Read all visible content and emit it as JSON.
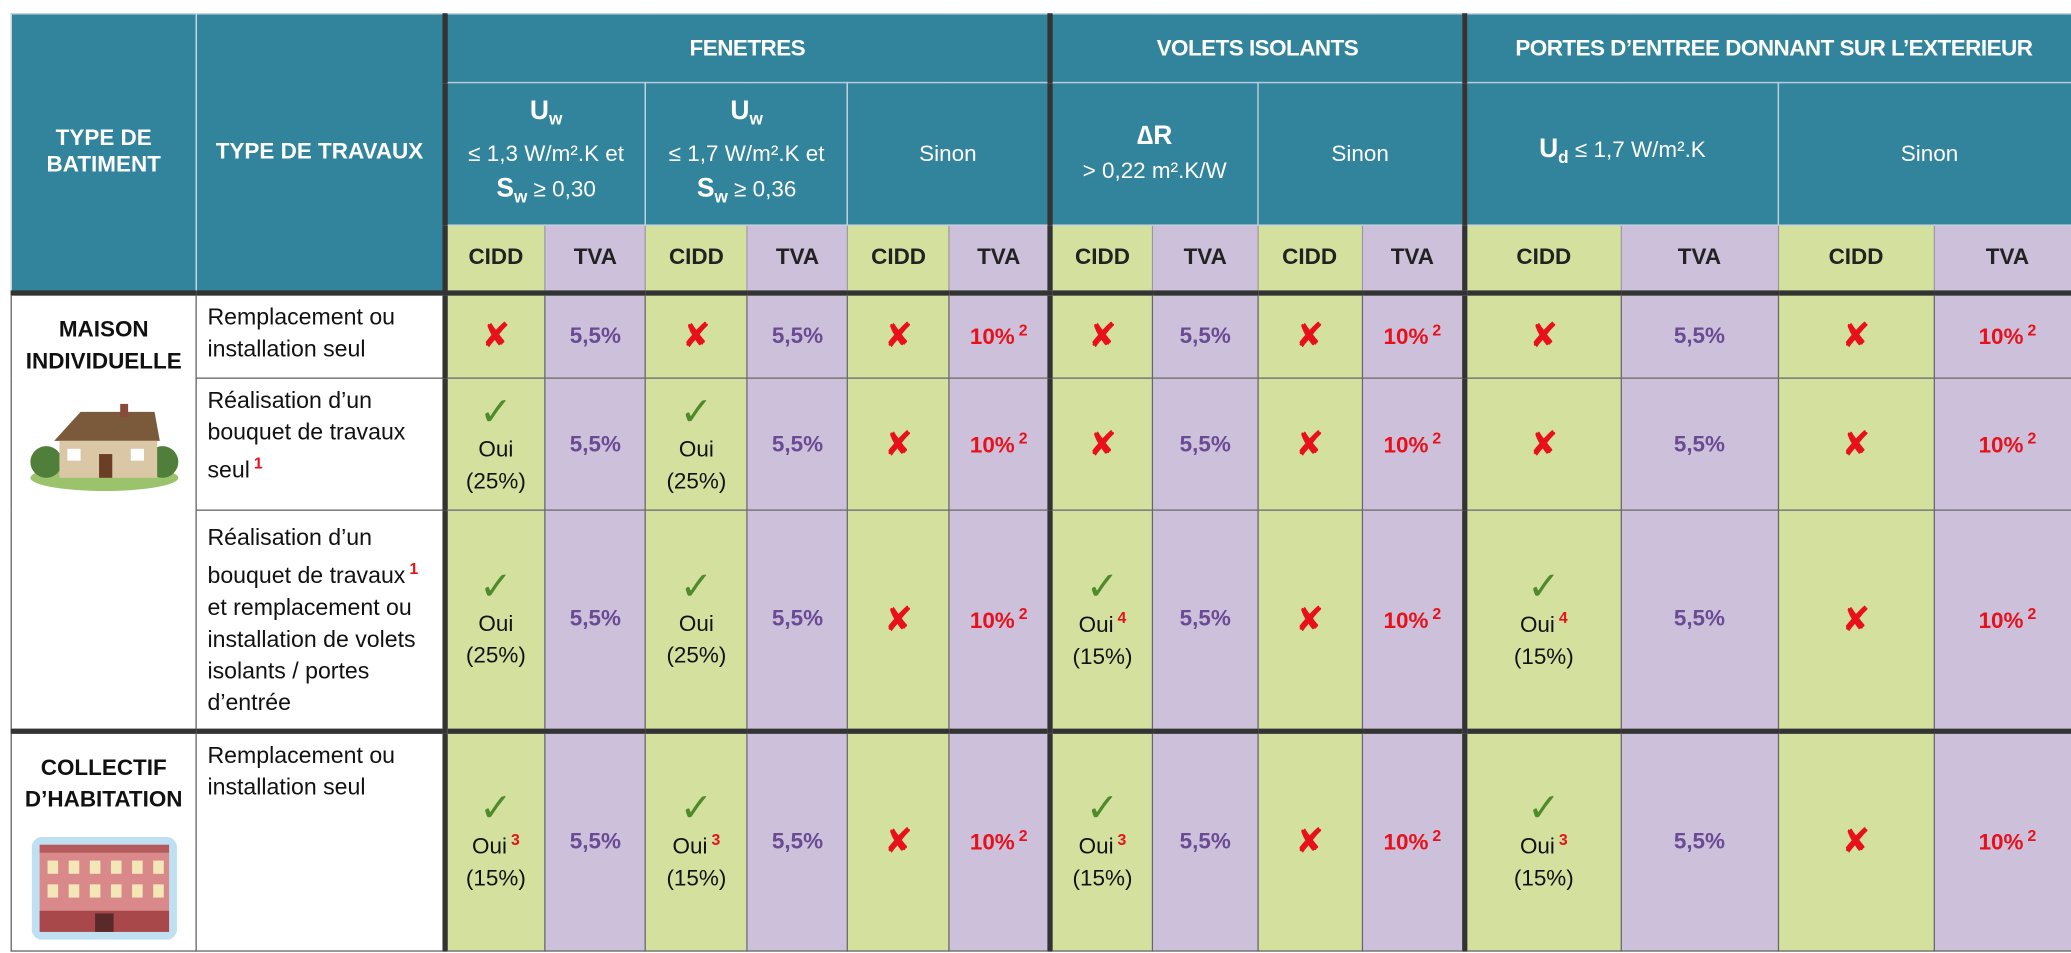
{
  "header": {
    "col_building": "TYPE DE BATIMENT",
    "col_work": "TYPE DE TRAVAUX",
    "groups": [
      {
        "title": "FENETRES",
        "subgroups": [
          {
            "symbol": "U",
            "sub": "w",
            "line1": "≤ 1,3 W/m².K et",
            "symbol2": "S",
            "sub2": "w",
            "line2": "≥ 0,30"
          },
          {
            "symbol": "U",
            "sub": "w",
            "line1": "≤ 1,7 W/m².K et",
            "symbol2": "S",
            "sub2": "w",
            "line2": "≥ 0,36"
          },
          {
            "line1": "Sinon"
          }
        ]
      },
      {
        "title": "VOLETS ISOLANTS",
        "subgroups": [
          {
            "symbol": "∆R",
            "line1": "> 0,22 m².K/W"
          },
          {
            "line1": "Sinon"
          }
        ]
      },
      {
        "title": "PORTES D’ENTREE DONNANT SUR L’EXTERIEUR",
        "subgroups": [
          {
            "symbol": "U",
            "sub": "d",
            "line1": "≤ 1,7 W/m².K"
          },
          {
            "line1": "Sinon"
          }
        ]
      }
    ],
    "columns": [
      "CIDD",
      "TVA",
      "CIDD",
      "TVA",
      "CIDD",
      "TVA",
      "CIDD",
      "TVA",
      "CIDD",
      "TVA",
      "CIDD",
      "TVA",
      "CIDD",
      "TVA"
    ]
  },
  "sections": [
    {
      "label": "MAISON INDIVIDUELLE",
      "rows": [
        {
          "work": {
            "text": "Remplacement ou installation seul"
          },
          "cells": [
            {
              "mark": "✘"
            },
            {
              "text": "5,5%"
            },
            {
              "mark": "✘"
            },
            {
              "text": "5,5%"
            },
            {
              "mark": "✘"
            },
            {
              "text": "10%",
              "note": "2"
            },
            {
              "mark": "✘"
            },
            {
              "text": "5,5%"
            },
            {
              "mark": "✘"
            },
            {
              "text": "10%",
              "note": "2"
            },
            {
              "mark": "✘"
            },
            {
              "text": "5,5%"
            },
            {
              "mark": "✘"
            },
            {
              "text": "10%",
              "note": "2"
            }
          ]
        },
        {
          "work": {
            "text": "Réalisation d’un bouquet de travaux seul",
            "note": "1"
          },
          "cells": [
            {
              "mark": "✓",
              "text": "Oui",
              "pct": "(25%)"
            },
            {
              "text": "5,5%"
            },
            {
              "mark": "✓",
              "text": "Oui",
              "pct": "(25%)"
            },
            {
              "text": "5,5%"
            },
            {
              "mark": "✘"
            },
            {
              "text": "10%",
              "note": "2"
            },
            {
              "mark": "✘"
            },
            {
              "text": "5,5%"
            },
            {
              "mark": "✘"
            },
            {
              "text": "10%",
              "note": "2"
            },
            {
              "mark": "✘"
            },
            {
              "text": "5,5%"
            },
            {
              "mark": "✘"
            },
            {
              "text": "10%",
              "note": "2"
            }
          ]
        },
        {
          "work": {
            "text": "Réalisation d’un bouquet de travaux",
            "note": "1",
            "text_after": "et remplacement ou installation de volets isolants / portes d’entrée"
          },
          "cells": [
            {
              "mark": "✓",
              "text": "Oui",
              "pct": "(25%)"
            },
            {
              "text": "5,5%"
            },
            {
              "mark": "✓",
              "text": "Oui",
              "pct": "(25%)"
            },
            {
              "text": "5,5%"
            },
            {
              "mark": "✘"
            },
            {
              "text": "10%",
              "note": "2"
            },
            {
              "mark": "✓",
              "text": "Oui",
              "note": "4",
              "pct": "(15%)"
            },
            {
              "text": "5,5%"
            },
            {
              "mark": "✘"
            },
            {
              "text": "10%",
              "note": "2"
            },
            {
              "mark": "✓",
              "text": "Oui",
              "note": "4",
              "pct": "(15%)"
            },
            {
              "text": "5,5%"
            },
            {
              "mark": "✘"
            },
            {
              "text": "10%",
              "note": "2"
            }
          ]
        }
      ]
    },
    {
      "label": "COLLECTIF D’HABITATION",
      "rows": [
        {
          "work": {
            "text": "Remplacement ou installation seul"
          },
          "cells": [
            {
              "mark": "✓",
              "text": "Oui",
              "note": "3",
              "pct": "(15%)"
            },
            {
              "text": "5,5%"
            },
            {
              "mark": "✓",
              "text": "Oui",
              "note": "3",
              "pct": "(15%)"
            },
            {
              "text": "5,5%"
            },
            {
              "mark": "✘"
            },
            {
              "text": "10%",
              "note": "2"
            },
            {
              "mark": "✓",
              "text": "Oui",
              "note": "3",
              "pct": "(15%)"
            },
            {
              "text": "5,5%"
            },
            {
              "mark": "✘"
            },
            {
              "text": "10%",
              "note": "2"
            },
            {
              "mark": "✓",
              "text": "Oui",
              "note": "3",
              "pct": "(15%)"
            },
            {
              "text": "5,5%"
            },
            {
              "mark": "✘"
            },
            {
              "text": "10%",
              "note": "2"
            }
          ]
        }
      ]
    }
  ]
}
